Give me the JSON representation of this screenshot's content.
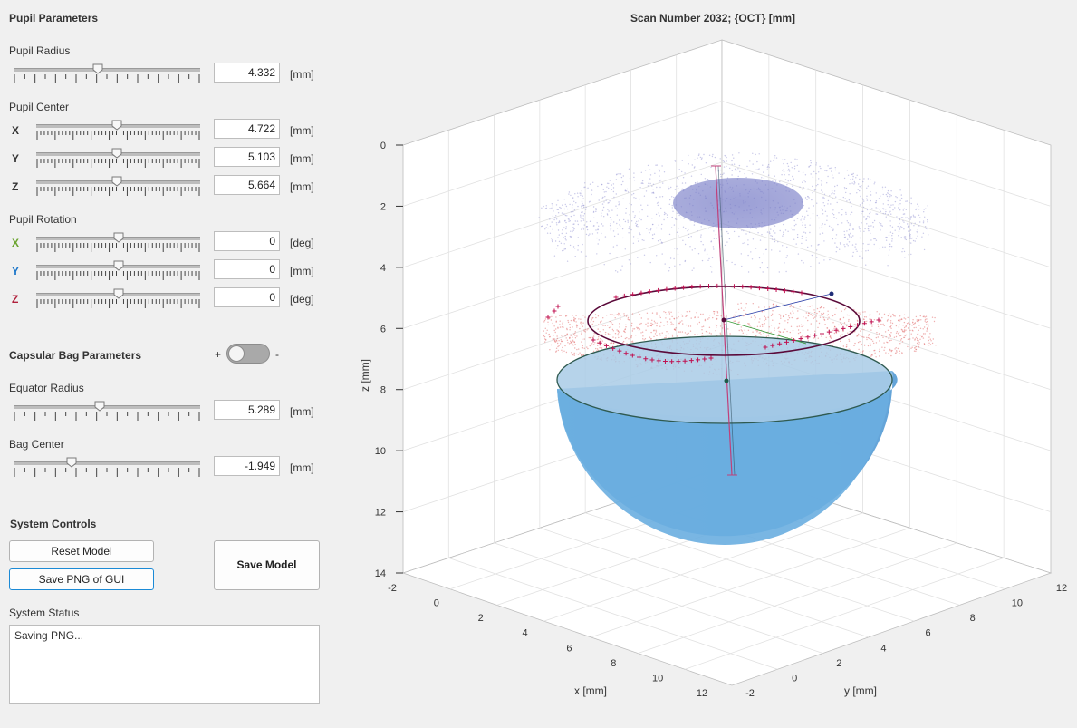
{
  "pupil": {
    "section_title": "Pupil Parameters",
    "radius": {
      "label": "Pupil Radius",
      "value": "4.332",
      "unit": "[mm]",
      "fraction": 0.45
    },
    "center": {
      "label": "Pupil Center",
      "x": {
        "axis": "X",
        "value": "4.722",
        "unit": "[mm]",
        "fraction": 0.49
      },
      "y": {
        "axis": "Y",
        "value": "5.103",
        "unit": "[mm]",
        "fraction": 0.49
      },
      "z": {
        "axis": "Z",
        "value": "5.664",
        "unit": "[mm]",
        "fraction": 0.49
      }
    },
    "rotation": {
      "label": "Pupil Rotation",
      "x": {
        "axis": "X",
        "value": "0",
        "unit": "[deg]",
        "fraction": 0.5,
        "color": "#6aa32e"
      },
      "y": {
        "axis": "Y",
        "value": "0",
        "unit": "[mm]",
        "fraction": 0.5,
        "color": "#1a75c9"
      },
      "z": {
        "axis": "Z",
        "value": "0",
        "unit": "[deg]",
        "fraction": 0.5,
        "color": "#b0203c"
      }
    }
  },
  "bag": {
    "section_title": "Capsular Bag Parameters",
    "toggle_plus": "+",
    "toggle_minus": "-",
    "equator": {
      "label": "Equator Radius",
      "value": "5.289",
      "unit": "[mm]",
      "fraction": 0.46
    },
    "center": {
      "label": "Bag Center",
      "value": "-1.949",
      "unit": "[mm]",
      "fraction": 0.3
    }
  },
  "system": {
    "section_title": "System Controls",
    "reset_label": "Reset Model",
    "save_png_label": "Save PNG of GUI",
    "save_model_label": "Save Model",
    "status_label": "System Status",
    "status_text": "Saving PNG..."
  },
  "plot": {
    "title": "Scan Number 2032; {OCT} [mm]",
    "zlabel": "z [mm]",
    "xlabel": "x [mm]",
    "ylabel": "y [mm]",
    "z_ticks": [
      "0",
      "2",
      "4",
      "6",
      "8",
      "10",
      "12",
      "14"
    ],
    "x_ticks": [
      "-2",
      "0",
      "2",
      "4",
      "6",
      "8",
      "10",
      "12"
    ],
    "y_ticks": [
      "-2",
      "0",
      "2",
      "4",
      "6",
      "8",
      "10",
      "12"
    ],
    "colors": {
      "hemisphere": "#6aaee0",
      "cornea": "#9a9ad6",
      "lens_points": "#e06060",
      "pupil_ring": "#5a0a3a",
      "markers": "#c01050"
    }
  }
}
